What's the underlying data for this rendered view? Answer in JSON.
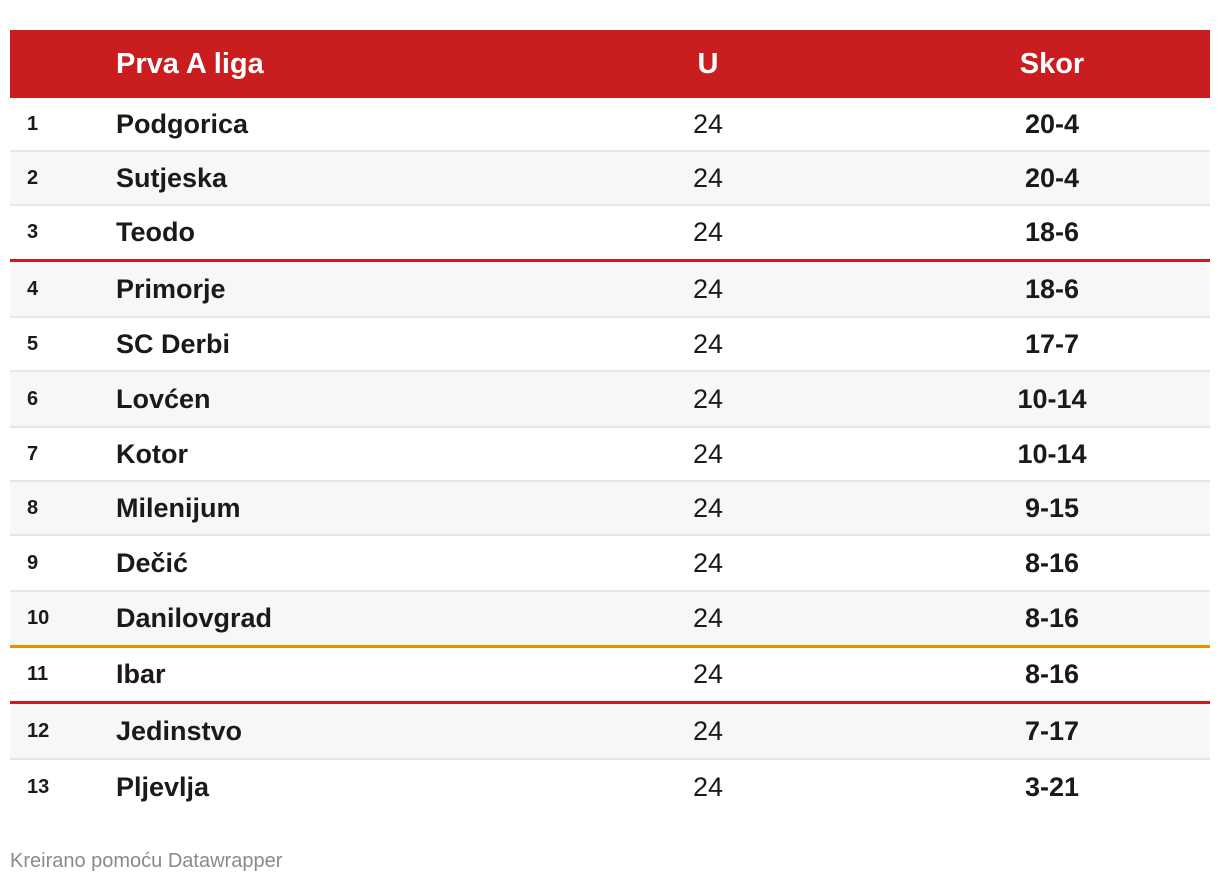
{
  "chart_data": {
    "type": "table",
    "columns": [
      "",
      "Prva A liga",
      "U",
      "Skor"
    ],
    "rows": [
      {
        "rank": "1",
        "team": "Podgorica",
        "played": "24",
        "score": "20-4"
      },
      {
        "rank": "2",
        "team": "Sutjeska",
        "played": "24",
        "score": "20-4"
      },
      {
        "rank": "3",
        "team": "Teodo",
        "played": "24",
        "score": "18-6"
      },
      {
        "rank": "4",
        "team": "Primorje",
        "played": "24",
        "score": "18-6"
      },
      {
        "rank": "5",
        "team": "SC Derbi",
        "played": "24",
        "score": "17-7"
      },
      {
        "rank": "6",
        "team": "Lovćen",
        "played": "24",
        "score": "10-14"
      },
      {
        "rank": "7",
        "team": "Kotor",
        "played": "24",
        "score": "10-14"
      },
      {
        "rank": "8",
        "team": "Milenijum",
        "played": "24",
        "score": "9-15"
      },
      {
        "rank": "9",
        "team": "Dečić",
        "played": "24",
        "score": "8-16"
      },
      {
        "rank": "10",
        "team": "Danilovgrad",
        "played": "24",
        "score": "8-16"
      },
      {
        "rank": "11",
        "team": "Ibar",
        "played": "24",
        "score": "8-16"
      },
      {
        "rank": "12",
        "team": "Jedinstvo",
        "played": "24",
        "score": "7-17"
      },
      {
        "rank": "13",
        "team": "Pljevlja",
        "played": "24",
        "score": "3-21"
      }
    ]
  },
  "colors": {
    "header_bg": "#c91d1f",
    "separator_red": "#c91d1f",
    "separator_orange": "#f08c00",
    "alt_row_bg": "#f7f7f7"
  },
  "footer": "Kreirano pomoću Datawrapper"
}
